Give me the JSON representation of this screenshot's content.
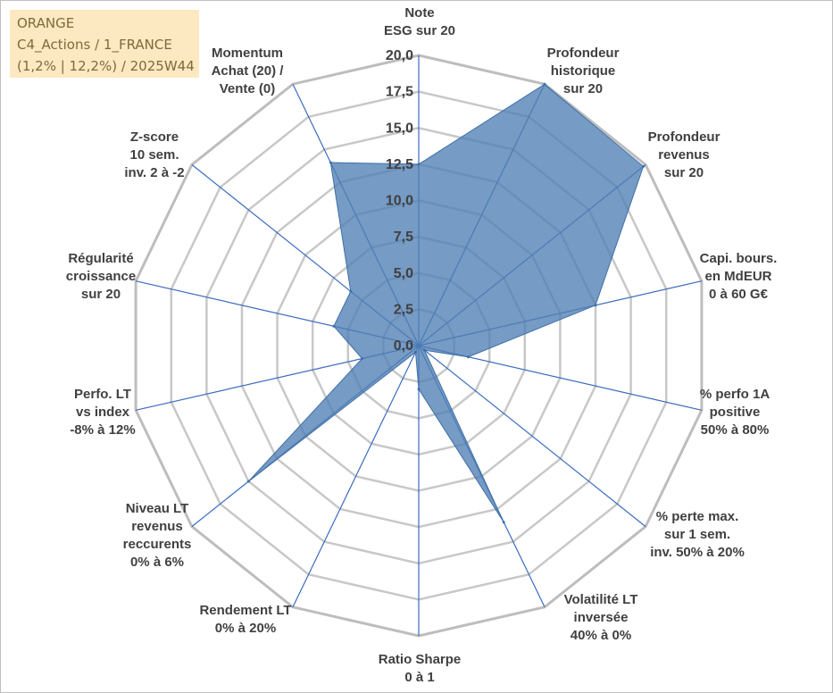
{
  "info_box": {
    "line1": "ORANGE",
    "line2": "C4_Actions / 1_FRANCE",
    "line3": "(1,2% | 12,2%) / 2025W44"
  },
  "colors": {
    "fill": "#4f7fb4",
    "spoke": "#3c6cbf",
    "grid": "#c8c8c8",
    "text": "#404040",
    "box": "#fde9c1"
  },
  "chart_data": {
    "type": "radar",
    "title": "",
    "rmin": 0,
    "rmax": 20,
    "ticks": [
      "0,0",
      "2,5",
      "5,0",
      "7,5",
      "10,0",
      "12,5",
      "15,0",
      "17,5",
      "20,0"
    ],
    "tick_values": [
      0,
      2.5,
      5,
      7.5,
      10,
      12.5,
      15,
      17.5,
      20
    ],
    "axes": [
      {
        "label": [
          "Note",
          "ESG sur 20"
        ],
        "value": 12.5
      },
      {
        "label": [
          "Profondeur",
          "historique",
          "sur 20"
        ],
        "value": 20
      },
      {
        "label": [
          "Profondeur",
          "revenus",
          "sur 20"
        ],
        "value": 19.8
      },
      {
        "label": [
          "Capi. bours.",
          "en MdEUR",
          "0 à 60 G€"
        ],
        "value": 12.5
      },
      {
        "label": [
          "% perfo 1A",
          "positive",
          "50% à 80%"
        ],
        "value": 3.5
      },
      {
        "label": [
          "% perte max.",
          "sur 1 sem.",
          "inv. 50% à 20%"
        ],
        "value": 0.5
      },
      {
        "label": [
          "Volatilité LT",
          "inversée",
          "40% à 0%"
        ],
        "value": 13.5
      },
      {
        "label": [
          "Ratio Sharpe",
          "0 à 1"
        ],
        "value": 3
      },
      {
        "label": [
          "Rendement LT",
          "0% à 20%"
        ],
        "value": 0.5
      },
      {
        "label": [
          "Niveau LT",
          "revenus",
          "reccurents",
          "0% à 6%"
        ],
        "value": 15
      },
      {
        "label": [
          "Perfo. LT",
          "vs index",
          "-8% à 12%"
        ],
        "value": 4
      },
      {
        "label": [
          "Régularité",
          "croissance",
          "sur 20"
        ],
        "value": 6
      },
      {
        "label": [
          "Z-score",
          "10 sem.",
          "inv. 2 à -2"
        ],
        "value": 6
      },
      {
        "label": [
          "Momentum",
          "Achat (20) /",
          "Vente (0)"
        ],
        "value": 14
      }
    ],
    "grid": true,
    "legend": "none"
  }
}
